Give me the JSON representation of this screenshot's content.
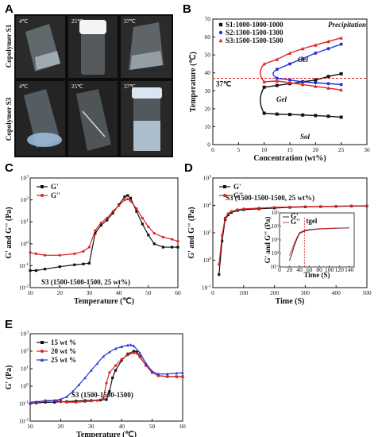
{
  "panels": {
    "A": {
      "label": "A",
      "row_labels": [
        "Copolymer S1",
        "Copolymer S3"
      ],
      "temps": [
        "4℃",
        "25℃",
        "37℃"
      ]
    },
    "B": {
      "label": "B"
    },
    "C": {
      "label": "C"
    },
    "D": {
      "label": "D"
    },
    "E": {
      "label": "E"
    }
  },
  "chart_data": [
    {
      "id": "B",
      "type": "scatter",
      "xlabel": "Concentration (wt%)",
      "ylabel": "Temperature (℃)",
      "xlim": [
        0,
        30
      ],
      "ylim": [
        0,
        70
      ],
      "xticks": [
        0,
        5,
        10,
        15,
        20,
        25,
        30
      ],
      "yticks": [
        0,
        10,
        20,
        30,
        40,
        50,
        60,
        70
      ],
      "legend": "top-left",
      "series": [
        {
          "name": "S1:1000-1000-1000",
          "color": "#111111",
          "marker": "square",
          "x": [
            10,
            12.5,
            15,
            17.5,
            20,
            22.5,
            25
          ],
          "upper": [
            32,
            33,
            34,
            35,
            36,
            38,
            39.5
          ],
          "lower": [
            17.5,
            17,
            16.8,
            16.5,
            16.2,
            15.8,
            15.3
          ]
        },
        {
          "name": "S2:1300-1500-1300",
          "color": "#2233dd",
          "marker": "circle",
          "x": [
            12.5,
            15,
            17.5,
            20,
            22.5,
            25
          ],
          "upper": [
            42,
            45,
            48,
            51,
            53.5,
            56
          ],
          "lower": [
            37,
            36,
            35,
            34.5,
            34,
            33.5
          ]
        },
        {
          "name": "S3:1500-1500-1500",
          "color": "#dd2222",
          "marker": "triangle",
          "x": [
            10,
            12.5,
            15,
            17.5,
            20,
            22.5,
            25
          ],
          "upper": [
            45,
            47.5,
            51,
            53.5,
            55.5,
            57.5,
            59.5
          ],
          "lower": [
            35,
            35.5,
            34.5,
            33.5,
            32.5,
            31.5,
            30.5
          ]
        }
      ],
      "reference_line": {
        "y": 37,
        "label": "37℃",
        "color": "#dd2222"
      },
      "regions": [
        "Precipitation",
        "Gel",
        "Gel",
        "Sol"
      ]
    },
    {
      "id": "C",
      "type": "line",
      "xlabel": "Temperature (℃)",
      "ylabel": "G' and G'' (Pa)",
      "log_y": true,
      "xlim": [
        10,
        60
      ],
      "ylim_exp": [
        -2,
        3
      ],
      "xticks": [
        10,
        20,
        30,
        40,
        50,
        60
      ],
      "annotation": "S3 (1500-1500-1500, 25 wt%)",
      "legend": "top-left",
      "series": [
        {
          "name": "G'",
          "color": "#111111",
          "marker": "square",
          "x": [
            10,
            12,
            15,
            20,
            25,
            28,
            30,
            32,
            34,
            36,
            38,
            40,
            42,
            43,
            44,
            46,
            48,
            50,
            52,
            55,
            58,
            60
          ],
          "y": [
            0.06,
            0.06,
            0.07,
            0.09,
            0.11,
            0.12,
            0.13,
            3,
            7,
            12,
            25,
            60,
            140,
            160,
            120,
            30,
            8,
            2.5,
            1,
            0.7,
            0.7,
            0.7
          ]
        },
        {
          "name": "G''",
          "color": "#dd2222",
          "marker": "circle",
          "x": [
            10,
            12,
            15,
            20,
            25,
            28,
            30,
            32,
            34,
            36,
            38,
            40,
            42,
            43,
            44,
            46,
            48,
            50,
            52,
            55,
            58,
            60
          ],
          "y": [
            0.4,
            0.35,
            0.3,
            0.3,
            0.35,
            0.45,
            0.7,
            4,
            9,
            15,
            30,
            55,
            100,
            110,
            90,
            40,
            15,
            6,
            3,
            2,
            1.6,
            1.3
          ]
        }
      ]
    },
    {
      "id": "D",
      "type": "line",
      "xlabel": "Time (S)",
      "ylabel": "G' and G'' (Pa)",
      "log_y": true,
      "xlim": [
        0,
        500
      ],
      "ylim_exp": [
        -1,
        3
      ],
      "xticks": [
        0,
        100,
        200,
        300,
        400,
        500
      ],
      "annotation": "S3 (1500-1500-1500, 25 wt%)",
      "legend": "top-left",
      "series": [
        {
          "name": "G'",
          "color": "#111111",
          "marker": "square",
          "x": [
            20,
            30,
            40,
            50,
            60,
            80,
            100,
            150,
            200,
            250,
            300,
            350,
            400,
            450,
            500
          ],
          "y": [
            0.3,
            5,
            30,
            45,
            55,
            65,
            70,
            75,
            80,
            85,
            88,
            90,
            92,
            94,
            95
          ]
        },
        {
          "name": "G''",
          "color": "#dd2222",
          "marker": "circle",
          "x": [
            20,
            30,
            40,
            50,
            60,
            80,
            100,
            150,
            200,
            250,
            300,
            350,
            400,
            450,
            500
          ],
          "y": [
            0.7,
            8,
            35,
            50,
            60,
            70,
            75,
            80,
            85,
            88,
            90,
            92,
            94,
            96,
            97
          ]
        }
      ],
      "inset": {
        "xlabel": "Time (S)",
        "ylabel": "G' and G'' (Pa)",
        "xlim": [
          0,
          150
        ],
        "ylim_exp": [
          -1,
          3
        ],
        "xticks": [
          0,
          20,
          40,
          60,
          80,
          100,
          120,
          140
        ],
        "legend": [
          "G'",
          "G''"
        ],
        "gel_label": "tgel",
        "gel_x": 50,
        "series": [
          {
            "name": "G'",
            "color": "#111111",
            "x": [
              20,
              25,
              30,
              35,
              40,
              50,
              60,
              80,
              100,
              120,
              140
            ],
            "y": [
              0.3,
              1,
              4,
              12,
              30,
              45,
              55,
              65,
              70,
              75,
              78
            ]
          },
          {
            "name": "G''",
            "color": "#dd2222",
            "x": [
              20,
              25,
              30,
              35,
              40,
              50,
              60,
              80,
              100,
              120,
              140
            ],
            "y": [
              0.7,
              2,
              6,
              15,
              35,
              50,
              60,
              68,
              73,
              77,
              80
            ]
          }
        ]
      }
    },
    {
      "id": "E",
      "type": "line",
      "xlabel": "Temperature (℃)",
      "ylabel": "G' (Pa)",
      "log_y": true,
      "xlim": [
        10,
        60
      ],
      "ylim_exp": [
        -2,
        3
      ],
      "xticks": [
        10,
        20,
        30,
        40,
        50,
        60
      ],
      "annotation": "S3 (1500-1500-1500)",
      "legend": "top-left",
      "series": [
        {
          "name": "15 wt %",
          "color": "#111111",
          "marker": "square",
          "x": [
            10,
            12,
            15,
            18,
            20,
            22,
            25,
            28,
            30,
            33,
            35,
            36,
            37,
            38,
            40,
            42,
            44,
            45,
            46,
            48,
            50,
            52,
            55,
            58,
            60
          ],
          "y": [
            0.1,
            0.11,
            0.12,
            0.12,
            0.13,
            0.13,
            0.14,
            0.15,
            0.15,
            0.16,
            0.17,
            0.5,
            3,
            8,
            30,
            70,
            100,
            90,
            50,
            15,
            6,
            4,
            3.5,
            3.5,
            3.5
          ]
        },
        {
          "name": "20 wt %",
          "color": "#dd2222",
          "marker": "circle",
          "x": [
            10,
            12,
            15,
            18,
            20,
            22,
            25,
            28,
            30,
            32,
            34,
            35,
            36,
            38,
            40,
            42,
            44,
            45,
            46,
            48,
            50,
            52,
            55,
            58,
            60
          ],
          "y": [
            0.1,
            0.12,
            0.15,
            0.15,
            0.13,
            0.12,
            0.12,
            0.13,
            0.14,
            0.15,
            0.2,
            1.5,
            6,
            15,
            35,
            60,
            80,
            75,
            45,
            15,
            6,
            4,
            3.5,
            3.5,
            3.5
          ]
        },
        {
          "name": "25 wt %",
          "color": "#2233dd",
          "marker": "triangle",
          "x": [
            10,
            12,
            15,
            18,
            20,
            22,
            24,
            26,
            28,
            30,
            32,
            34,
            36,
            38,
            40,
            42,
            43,
            44,
            46,
            48,
            50,
            52,
            55,
            58,
            60
          ],
          "y": [
            0.12,
            0.13,
            0.14,
            0.15,
            0.18,
            0.25,
            0.5,
            1.2,
            3,
            8,
            20,
            50,
            90,
            140,
            180,
            220,
            230,
            200,
            80,
            20,
            7,
            5,
            5,
            5.5,
            6
          ]
        }
      ]
    }
  ]
}
